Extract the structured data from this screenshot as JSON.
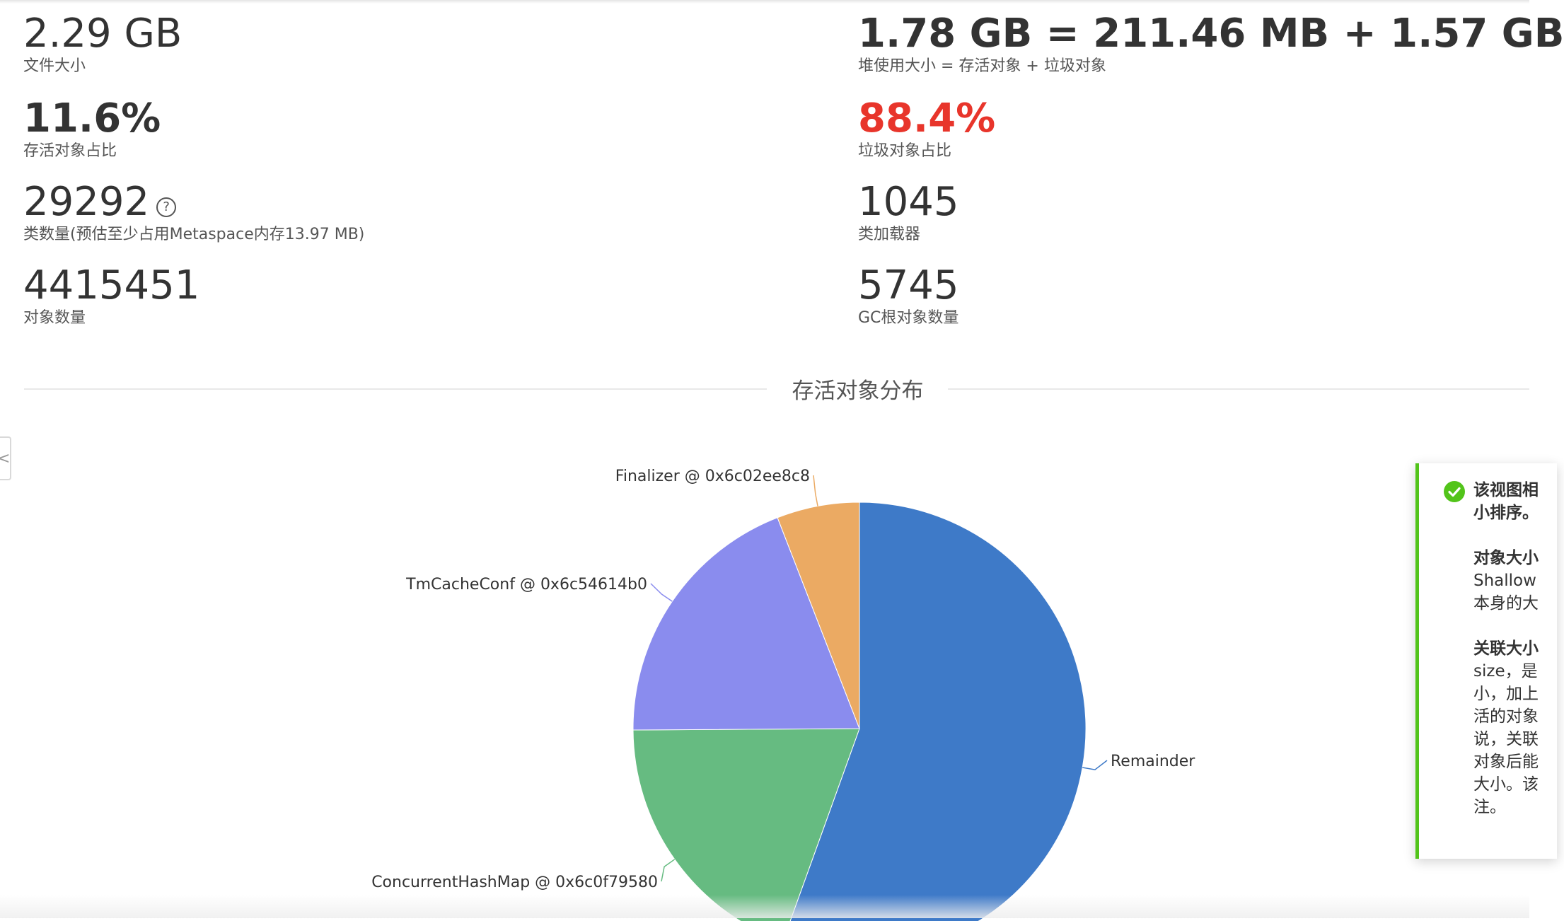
{
  "overview": {
    "left": [
      {
        "value": "2.29 GB",
        "label": "文件大小"
      },
      {
        "value": "11.6%",
        "label": "存活对象占比"
      },
      {
        "value": "29292",
        "label": "类数量(预估至少占用Metaspace内存13.97 MB)",
        "help": "?"
      },
      {
        "value": "4415451",
        "label": "对象数量"
      }
    ],
    "right": [
      {
        "value": "1.78 GB = 211.46 MB + 1.57 GB",
        "label": "堆使用大小 = 存活对象 + 垃圾对象"
      },
      {
        "value": "88.4%",
        "label": "垃圾对象占比"
      },
      {
        "value": "1045",
        "label": "类加载器"
      },
      {
        "value": "5745",
        "label": "GC根对象数量"
      }
    ]
  },
  "section": {
    "title": "存活对象分布"
  },
  "colors": {
    "remainder": "#3e7ac8",
    "concurrenthashmap": "#66bb81",
    "tmcacheconf": "#8a8cee",
    "finalizer": "#ebaa63",
    "garbage_pct": "#e8352b",
    "success": "#52c41a"
  },
  "chart_data": {
    "type": "pie",
    "title": "存活对象分布",
    "slices": [
      {
        "label": "Remainder",
        "value": 55.5
      },
      {
        "label": "ConcurrentHashMap @ 0x6c0f79580",
        "value": 19.4
      },
      {
        "label": "TmCacheConf @ 0x6c54614b0",
        "value": 19.2
      },
      {
        "label": "Finalizer @ 0x6c02ee8c8",
        "value": 5.9
      }
    ]
  },
  "notification": {
    "icon": "check-circle-icon",
    "lines": [
      "该视图相",
      "小排序。",
      "",
      "对象大小",
      "Shallow",
      "本身的大",
      "",
      "关联大小",
      "size，是",
      "小，加上",
      "活的对象",
      "说，关联",
      "对象后能",
      "大小。该",
      "注。"
    ]
  },
  "side_tab": {
    "icon": "chevron-left-icon",
    "glyph": "<"
  }
}
